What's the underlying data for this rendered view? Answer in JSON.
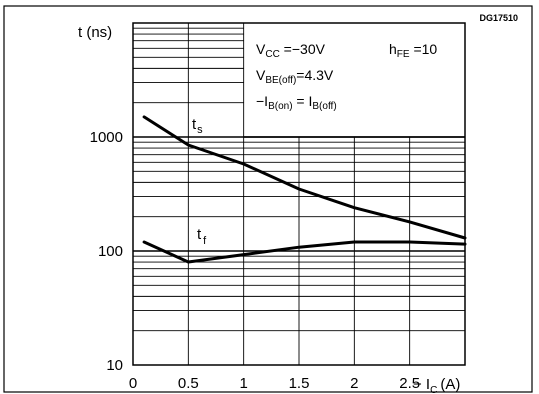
{
  "chart_data": {
    "type": "line",
    "code": "DG17510",
    "ylabel": "t (ns)",
    "xlabel": "− I",
    "xlabel_sub": "C",
    "xlabel_unit": "(A)",
    "yscale": "log",
    "ylim": [
      10,
      10000
    ],
    "xlim": [
      0,
      3
    ],
    "x_ticks": [
      "0",
      "0.5",
      "1",
      "1.5",
      "2",
      "2.5"
    ],
    "y_ticks": [
      "10",
      "100",
      "1000"
    ],
    "grid": true,
    "conditions": {
      "vcc": {
        "main": "V",
        "sub": "CC",
        "rest": " =−30V"
      },
      "hfe": {
        "main": "h",
        "sub": "FE",
        "rest": " =10"
      },
      "vbe": {
        "main": "V",
        "sub": "BE(off)",
        "rest": "=4.3V"
      },
      "ib": {
        "prefix": "−I",
        "sub1": "B(on)",
        "mid": " = I",
        "sub2": "B(off)"
      }
    },
    "series": [
      {
        "name": "ts",
        "label_main": "t",
        "label_sub": "s",
        "x": [
          0.1,
          0.5,
          1.0,
          1.5,
          2.0,
          2.5,
          3.0
        ],
        "values": [
          1500,
          850,
          580,
          350,
          240,
          180,
          130
        ]
      },
      {
        "name": "tf",
        "label_main": "t",
        "label_sub": "f",
        "x": [
          0.1,
          0.5,
          1.0,
          1.5,
          2.0,
          2.5,
          3.0
        ],
        "values": [
          120,
          80,
          93,
          108,
          120,
          120,
          115
        ]
      }
    ]
  }
}
